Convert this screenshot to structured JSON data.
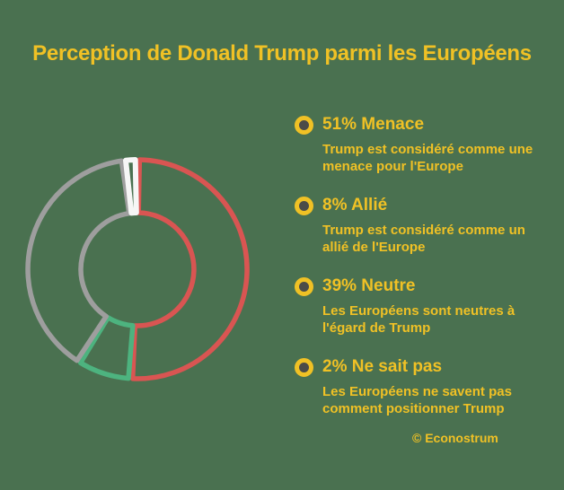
{
  "background_color": "#4A7150",
  "accent_gold": "#F0C125",
  "bullet_center_color": "#4B4B48",
  "title": "Perception de Donald Trump parmi les Européens",
  "chart_data": {
    "type": "donut",
    "title": "Perception de Donald Trump parmi les Européens",
    "unit": "percent",
    "style": "outlined-wedges",
    "start_angle_deg": 0,
    "direction": "clockwise",
    "legend_position": "right",
    "segments": [
      {
        "label": "Menace",
        "value": 51,
        "color": "#D95552",
        "stroke_width": 5.5
      },
      {
        "label": "Allié",
        "value": 8,
        "color": "#4DB37F",
        "stroke_width": 5.5
      },
      {
        "label": "Neutre",
        "value": 39,
        "color": "#9E9E9E",
        "stroke_width": 5.5
      },
      {
        "label": "Ne sait pas",
        "value": 2,
        "color": "#F6F6F6",
        "stroke_width": 6
      }
    ]
  },
  "legend": {
    "items": [
      {
        "heading": "51% Menace",
        "description": "Trump est considéré comme une\nmenace pour l'Europe"
      },
      {
        "heading": "8% Allié",
        "description": "Trump est considéré comme un\nallié de l'Europe"
      },
      {
        "heading": "39% Neutre",
        "description": "Les Européens sont neutres à\nl'égard de Trump"
      },
      {
        "heading": "2% Ne sait pas",
        "description": "Les Européens ne savent pas\ncomment positionner Trump"
      }
    ]
  },
  "footer": {
    "credit": "© Econostrum"
  }
}
